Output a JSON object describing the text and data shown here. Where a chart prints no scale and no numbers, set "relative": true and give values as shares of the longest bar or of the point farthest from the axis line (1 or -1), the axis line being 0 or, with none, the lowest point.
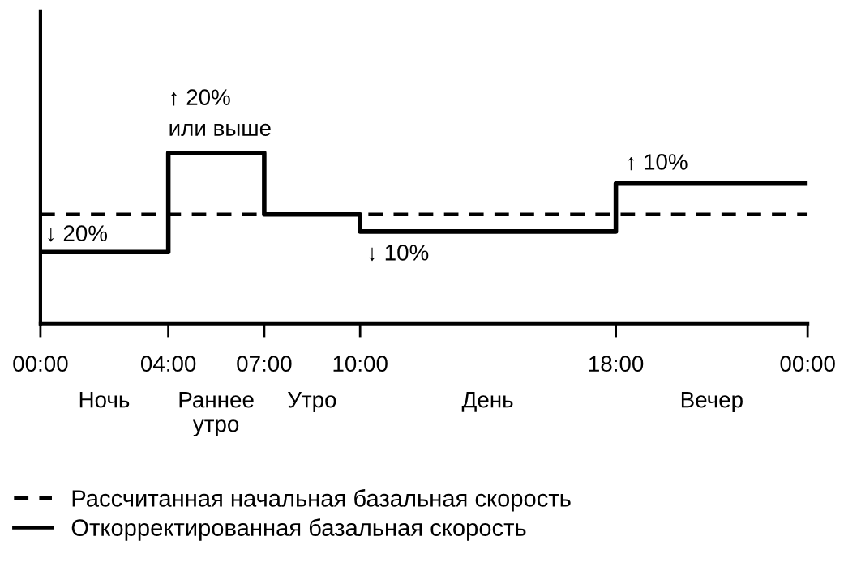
{
  "chart_data": {
    "type": "step",
    "relative": true,
    "xlim": [
      0,
      24
    ],
    "xticks": [
      {
        "value": 0,
        "label": "00:00"
      },
      {
        "value": 4,
        "label": "04:00"
      },
      {
        "value": 7,
        "label": "07:00"
      },
      {
        "value": 10,
        "label": "10:00"
      },
      {
        "value": 18,
        "label": "18:00"
      },
      {
        "value": 24,
        "label": "00:00"
      }
    ],
    "series": [
      {
        "name": "Рассчитанная начальная базальная скорость",
        "type": "line",
        "line_style": "dashed",
        "color": "#000000",
        "x": [
          0,
          24
        ],
        "values": [
          0.64,
          0.64
        ]
      },
      {
        "name": "Откорректированная базальная скорость",
        "line_style": "solid",
        "color": "#000000",
        "x": [
          0,
          4,
          7,
          10,
          18,
          24
        ],
        "values": [
          0.42,
          1,
          0.64,
          0.54,
          0.82,
          0.82
        ]
      }
    ],
    "annotations": [
      {
        "text": "↓ 20%",
        "x": 0,
        "y": 0.42
      },
      {
        "text": "↑ 20%\nили выше",
        "x": 4,
        "y": 1
      },
      {
        "text": "↓ 10%",
        "x": 10,
        "y": 0.54
      },
      {
        "text": "↑ 10%",
        "x": 18,
        "y": 0.82
      },
      "Ночь",
      "Раннее\nутро",
      "Утро",
      "День",
      "Вечер"
    ],
    "legend": "bottom",
    "grid": false
  }
}
